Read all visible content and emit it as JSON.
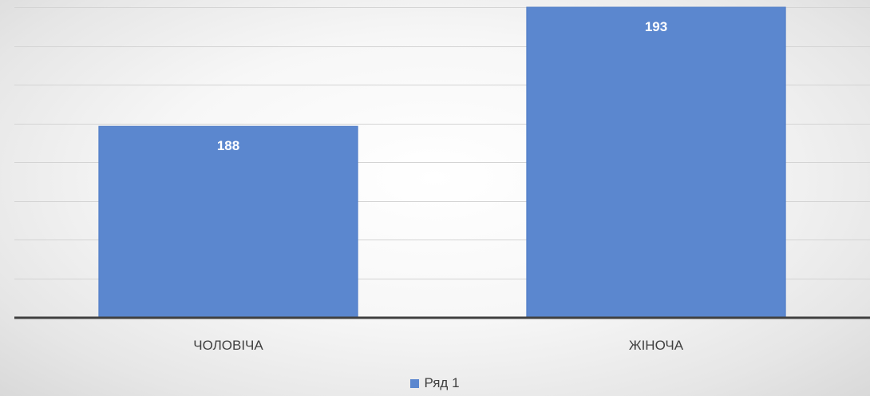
{
  "chart_data": {
    "type": "bar",
    "categories": [
      "ЧОЛОВІЧА",
      "ЖІНОЧА"
    ],
    "series": [
      {
        "name": "Ряд 1",
        "values": [
          188,
          193
        ]
      }
    ],
    "ylim": [
      180,
      193
    ],
    "grid": true,
    "legend_position": "bottom",
    "data_labels": true,
    "colors": {
      "bar": "#5b87cf",
      "bar_edge": "#4f7cc6",
      "grid": "#d4d4d4",
      "axis": "#404040",
      "label_inside": "#ffffff",
      "category_text": "#404040"
    }
  }
}
